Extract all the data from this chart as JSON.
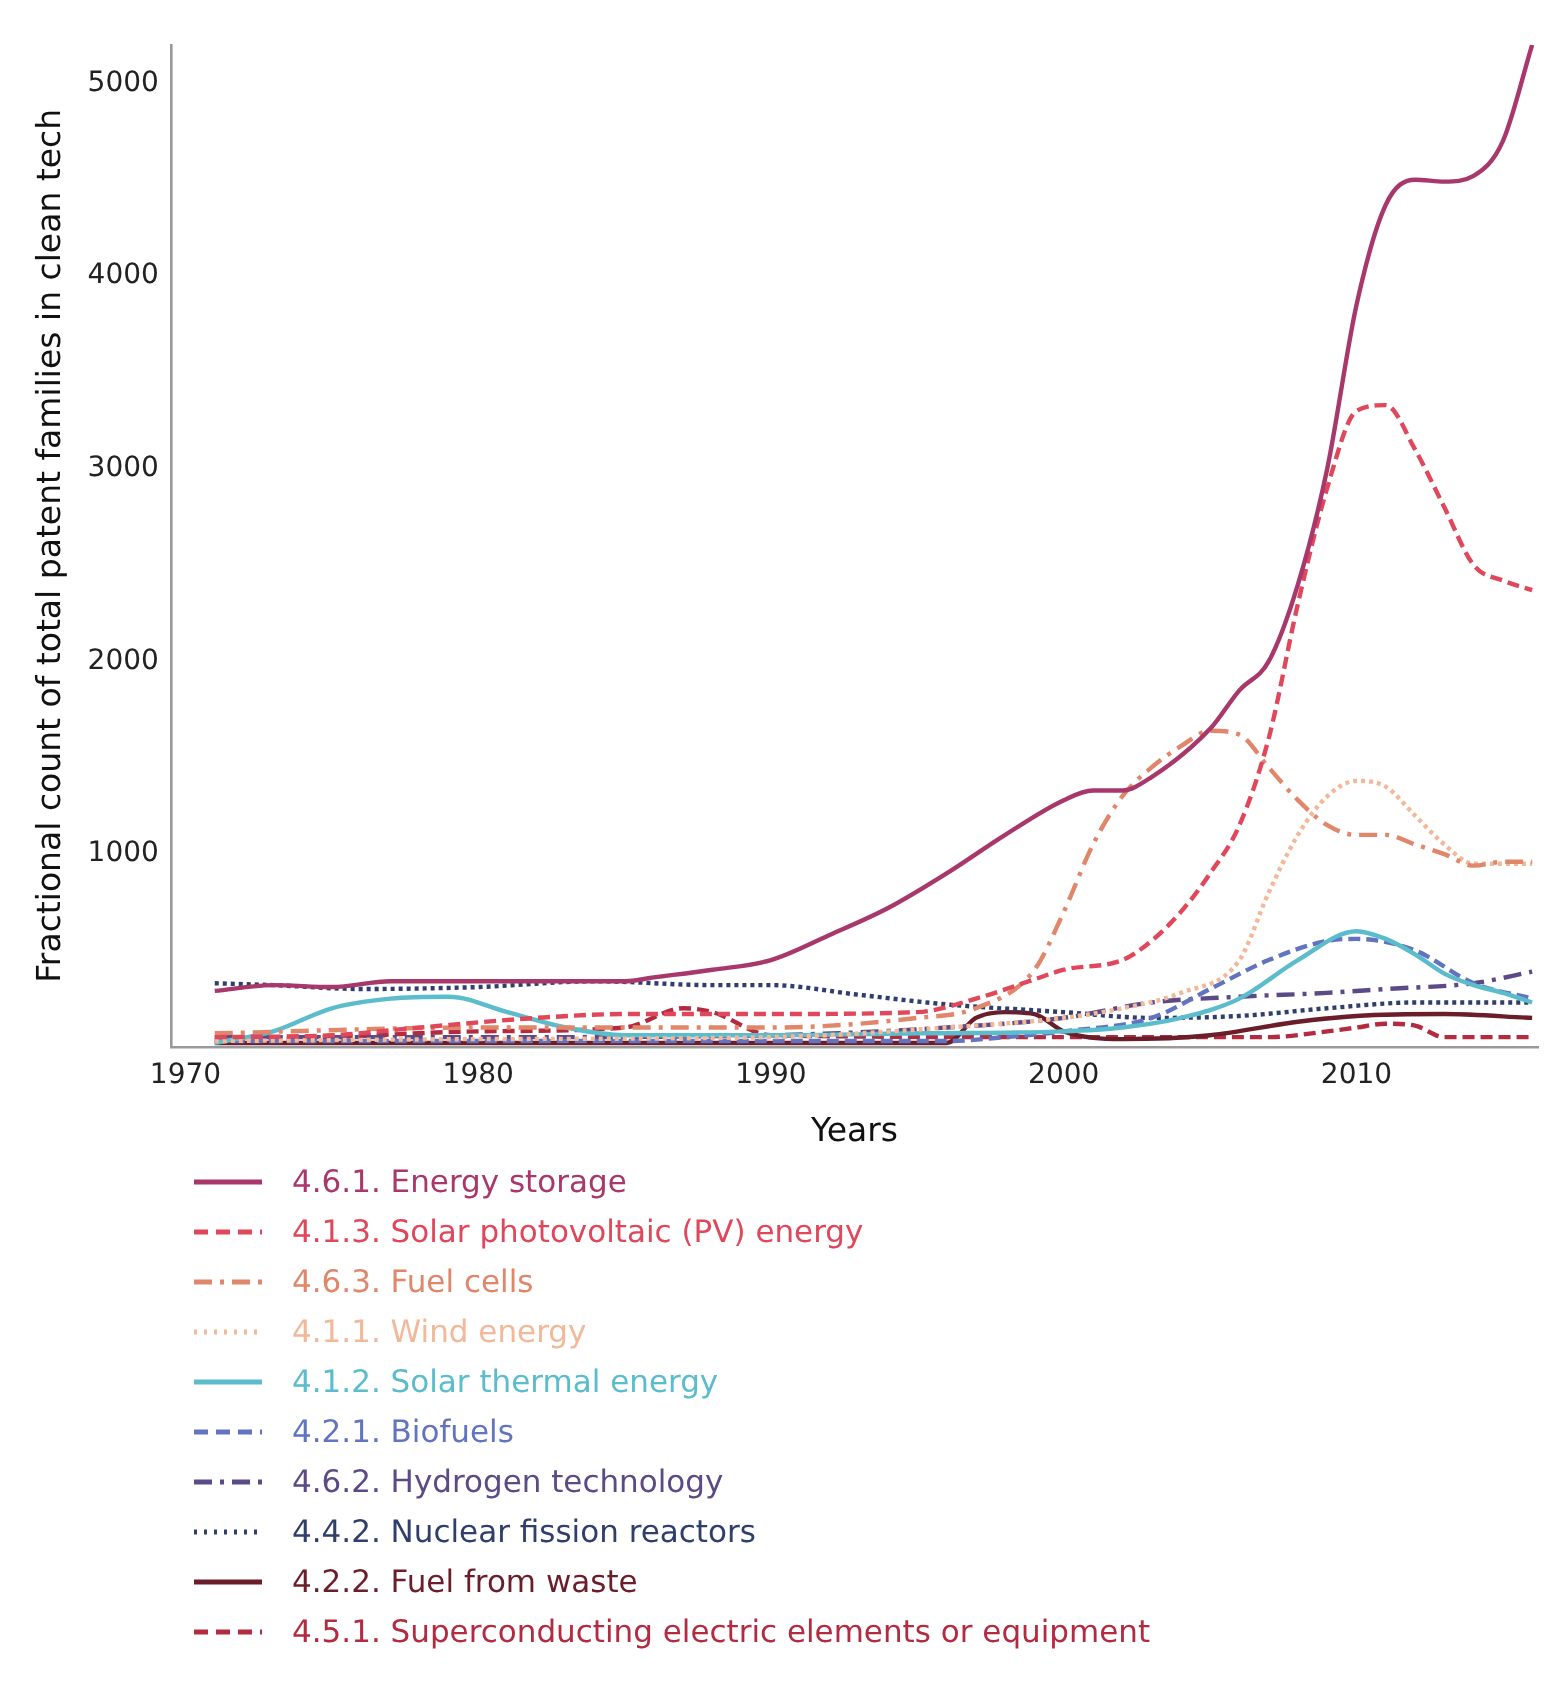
{
  "chart_data": {
    "type": "line",
    "xlabel": "Years",
    "ylabel": "Fractional count of total patent families in clean tech",
    "xlim": [
      1969.5,
      2016.2
    ],
    "xticks": [
      1970,
      1980,
      1990,
      2000,
      2010
    ],
    "ylim": [
      0,
      5200
    ],
    "yticks": [
      1000,
      2000,
      3000,
      4000,
      5000
    ],
    "grid": false,
    "legend": "bottom",
    "marker": "none",
    "series": [
      {
        "name": "4.6.1. Energy storage",
        "color": "#a8386c",
        "line_style": "solid",
        "x": [
          1971,
          1973,
          1975,
          1977,
          1980,
          1983,
          1985,
          1986,
          1988,
          1990,
          1992,
          1994,
          1996,
          1998,
          2000,
          2001,
          2002,
          2003,
          2005,
          2006,
          2007,
          2008,
          2009,
          2010,
          2011,
          2012,
          2013,
          2014,
          2015,
          2016
        ],
        "values": [
          290,
          320,
          310,
          340,
          340,
          340,
          340,
          360,
          400,
          450,
          580,
          720,
          900,
          1100,
          1280,
          1330,
          1330,
          1400,
          1650,
          1850,
          2000,
          2400,
          3000,
          3850,
          4370,
          4500,
          4490,
          4520,
          4700,
          5200
        ]
      },
      {
        "name": "4.1.3. Solar photovoltaic (PV) energy",
        "color": "#e0475b",
        "line_style": "dashed",
        "x": [
          1971,
          1975,
          1978,
          1982,
          1985,
          1990,
          1995,
          1997,
          1999,
          2000,
          2002,
          2003,
          2004,
          2005,
          2006,
          2007,
          2008,
          2009,
          2010,
          2011,
          2012,
          2013,
          2014,
          2015,
          2016
        ],
        "values": [
          50,
          60,
          100,
          150,
          170,
          170,
          180,
          250,
          350,
          400,
          450,
          550,
          700,
          900,
          1150,
          1600,
          2300,
          2900,
          3300,
          3330,
          3100,
          2800,
          2500,
          2420,
          2370
        ]
      },
      {
        "name": "4.6.3. Fuel cells",
        "color": "#e0866a",
        "line_style": "dashdot",
        "x": [
          1971,
          1980,
          1990,
          1995,
          1997,
          1999,
          2000,
          2001,
          2002,
          2003,
          2004,
          2005,
          2006,
          2007,
          2008,
          2009,
          2010,
          2011,
          2012,
          2013,
          2014,
          2015,
          2016
        ],
        "values": [
          70,
          100,
          100,
          150,
          200,
          400,
          700,
          1050,
          1300,
          1450,
          1560,
          1640,
          1620,
          1450,
          1280,
          1150,
          1100,
          1100,
          1050,
          1000,
          940,
          960,
          960
        ]
      },
      {
        "name": "4.1.1. Wind energy",
        "color": "#f2b89a",
        "line_style": "dotted",
        "x": [
          1971,
          1980,
          1990,
          1996,
          2000,
          2002,
          2004,
          2006,
          2007,
          2008,
          2009,
          2010,
          2011,
          2012,
          2013,
          2014,
          2015,
          2016
        ],
        "values": [
          30,
          40,
          50,
          100,
          150,
          200,
          280,
          450,
          800,
          1100,
          1300,
          1380,
          1350,
          1200,
          1050,
          950,
          950,
          950
        ]
      },
      {
        "name": "4.1.2. Solar thermal energy",
        "color": "#5bbccc",
        "line_style": "solid",
        "x": [
          1971,
          1973,
          1975,
          1977,
          1979,
          1981,
          1983,
          1985,
          1990,
          1995,
          2000,
          2002,
          2004,
          2006,
          2008,
          2010,
          2011,
          2012,
          2013,
          2014,
          2015,
          2016
        ],
        "values": [
          20,
          80,
          200,
          250,
          260,
          180,
          100,
          60,
          60,
          70,
          80,
          100,
          150,
          250,
          450,
          600,
          560,
          480,
          380,
          320,
          280,
          230
        ]
      },
      {
        "name": "4.2.1. Biofuels",
        "color": "#6274c0",
        "line_style": "dashed",
        "x": [
          1971,
          1980,
          1990,
          1996,
          1998,
          2000,
          2003,
          2005,
          2007,
          2009,
          2010,
          2012,
          2014,
          2016
        ],
        "values": [
          30,
          30,
          30,
          30,
          50,
          80,
          150,
          300,
          450,
          550,
          560,
          500,
          330,
          250
        ]
      },
      {
        "name": "4.6.2. Hydrogen technology",
        "color": "#5c4a86",
        "line_style": "dashdot",
        "x": [
          1971,
          1980,
          1990,
          1996,
          2000,
          2003,
          2006,
          2009,
          2011,
          2014,
          2016
        ],
        "values": [
          50,
          50,
          60,
          100,
          150,
          230,
          260,
          280,
          300,
          330,
          390
        ]
      },
      {
        "name": "4.4.2. Nuclear fission reactors",
        "color": "#2f3e6b",
        "line_style": "dotted",
        "x": [
          1971,
          1973,
          1976,
          1980,
          1984,
          1988,
          1990,
          1993,
          1996,
          2000,
          2003,
          2006,
          2009,
          2012,
          2016
        ],
        "values": [
          330,
          320,
          300,
          310,
          340,
          320,
          320,
          270,
          220,
          180,
          150,
          160,
          200,
          230,
          230
        ]
      },
      {
        "name": "4.2.2. Fuel from waste",
        "color": "#6b1e2a",
        "line_style": "solid",
        "x": [
          1971,
          1980,
          1990,
          1996,
          1997,
          1998,
          1999,
          2000,
          2002,
          2005,
          2008,
          2010,
          2013,
          2016
        ],
        "values": [
          20,
          20,
          20,
          20,
          150,
          180,
          170,
          80,
          40,
          60,
          130,
          160,
          170,
          150
        ]
      },
      {
        "name": "4.5.1. Superconducting electric elements or equipment",
        "color": "#b22b40",
        "line_style": "dashed",
        "x": [
          1971,
          1975,
          1980,
          1985,
          1987,
          1988,
          1990,
          2000,
          2007,
          2009,
          2010,
          2011,
          2012,
          2013,
          2016
        ],
        "values": [
          30,
          50,
          80,
          100,
          200,
          180,
          60,
          50,
          50,
          80,
          100,
          120,
          110,
          50,
          50
        ]
      }
    ]
  }
}
